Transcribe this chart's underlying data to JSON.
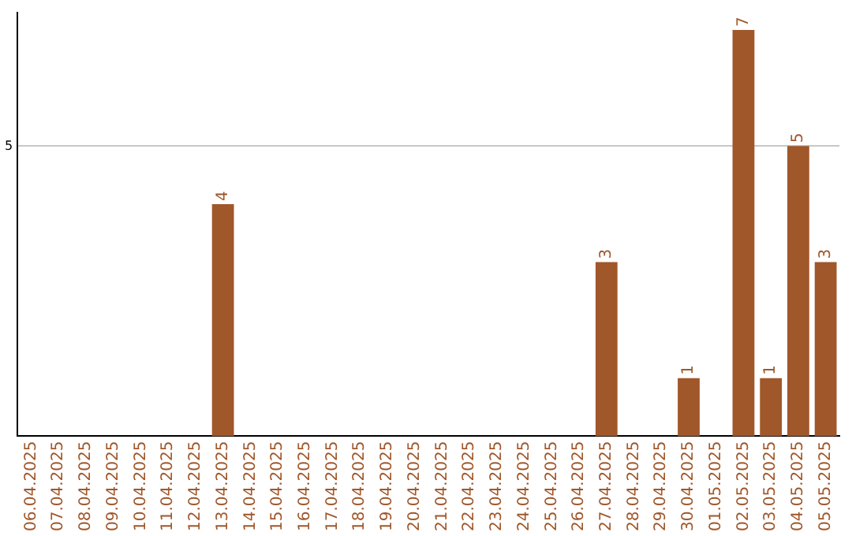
{
  "chart_data": {
    "type": "bar",
    "categories": [
      "06.04.2025",
      "07.04.2025",
      "08.04.2025",
      "09.04.2025",
      "10.04.2025",
      "11.04.2025",
      "12.04.2025",
      "13.04.2025",
      "14.04.2025",
      "15.04.2025",
      "16.04.2025",
      "17.04.2025",
      "18.04.2025",
      "19.04.2025",
      "20.04.2025",
      "21.04.2025",
      "22.04.2025",
      "23.04.2025",
      "24.04.2025",
      "25.04.2025",
      "26.04.2025",
      "27.04.2025",
      "28.04.2025",
      "29.04.2025",
      "30.04.2025",
      "01.05.2025",
      "02.05.2025",
      "03.05.2025",
      "04.05.2025",
      "05.05.2025"
    ],
    "values": [
      0,
      0,
      0,
      0,
      0,
      0,
      0,
      4,
      0,
      0,
      0,
      0,
      0,
      0,
      0,
      0,
      0,
      0,
      0,
      0,
      0,
      3,
      0,
      0,
      1,
      0,
      7,
      1,
      5,
      3
    ],
    "value_labels": [
      null,
      null,
      null,
      null,
      null,
      null,
      null,
      "4",
      null,
      null,
      null,
      null,
      null,
      null,
      null,
      null,
      null,
      null,
      null,
      null,
      null,
      "3",
      null,
      null,
      "1",
      null,
      "7",
      "1",
      "5",
      "3"
    ],
    "color": "#a0572a",
    "ylim": [
      0,
      7.3
    ],
    "yticks": [
      5
    ],
    "grid": "y",
    "legend": false
  }
}
